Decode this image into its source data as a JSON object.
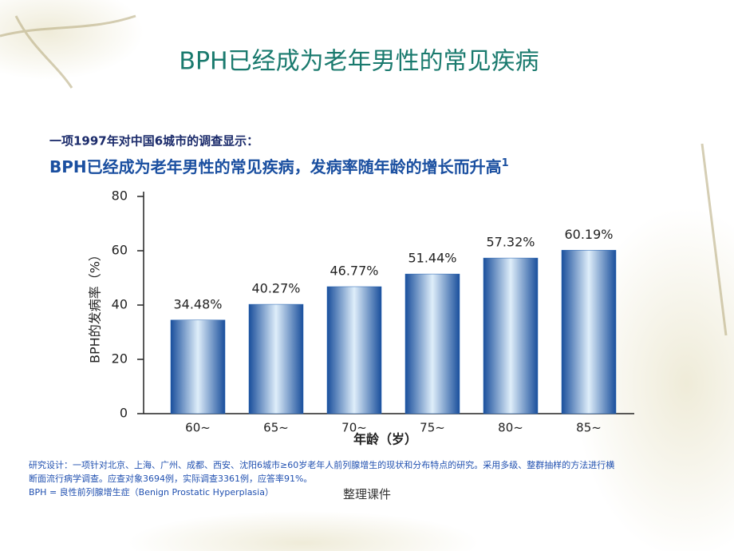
{
  "slide_title": "BPH已经成为老年男性的常见疾病",
  "intro": "一项1997年对中国6城市的调查显示：",
  "headline": "BPH已经成为老年男性的常见疾病，发病率随年龄的增长而升高",
  "headline_superscript": "1",
  "chart_data": {
    "type": "bar",
    "categories": [
      "60~",
      "65~",
      "70~",
      "75~",
      "80~",
      "85~"
    ],
    "values": [
      34.48,
      40.27,
      46.77,
      51.44,
      57.32,
      60.19
    ],
    "value_labels": [
      "34.48%",
      "40.27%",
      "46.77%",
      "51.44%",
      "57.32%",
      "60.19%"
    ],
    "color": "#1f5fb0",
    "ylim": [
      0,
      80
    ],
    "yticks": [
      0,
      20,
      40,
      60,
      80
    ],
    "y_label": "BPH的发病率（%）",
    "x_label": "年龄（岁）"
  },
  "footnotes": [
    "研究设计：一项针对北京、上海、广州、成都、西安、沈阳6城市≥60岁老年人前列腺增生的现状和分布特点的研究。采用多级、整群抽样的方法进行横",
    "断面流行病学调查。应查对象3694例，实际调查3361例，应答率91%。",
    "BPH = 良性前列腺增生症（Benign Prostatic Hyperplasia）"
  ],
  "watermark": "整理课件"
}
